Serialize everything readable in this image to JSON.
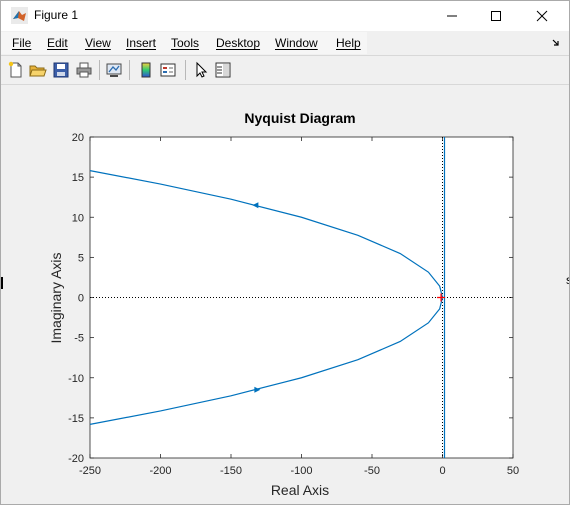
{
  "window": {
    "title": "Figure 1",
    "icon": "matlab-icon",
    "controls": [
      "minimize-icon",
      "maximize-icon",
      "close-icon"
    ]
  },
  "menu": [
    "File",
    "Edit",
    "View",
    "Insert",
    "Tools",
    "Desktop",
    "Window",
    "Help"
  ],
  "toolbar": [
    "new-figure-icon",
    "open-file-icon",
    "save-icon",
    "print-icon",
    "link-plot-icon",
    "insert-colorbar-icon",
    "insert-legend-icon",
    "edit-plot-icon",
    "property-inspector-icon"
  ],
  "colors": {
    "curve": "#0072bd",
    "critical_point": "#ff0000",
    "axes_text": "#262626"
  },
  "chart_data": {
    "type": "line",
    "title": "Nyquist Diagram",
    "xlabel": "Real Axis",
    "ylabel": "Imaginary Axis",
    "xlim": [
      -250,
      50
    ],
    "ylim": [
      -20,
      20
    ],
    "xticks": [
      -250,
      -200,
      -150,
      -100,
      -50,
      0,
      50
    ],
    "yticks": [
      20,
      15,
      10,
      5,
      0,
      -5,
      -10,
      -15,
      -20
    ],
    "grid": false,
    "series": [
      {
        "x": [
          -250,
          -200,
          -150,
          -100,
          -60,
          -30,
          -10,
          -2,
          0
        ],
        "y": [
          15.81,
          14.14,
          12.25,
          10.0,
          7.75,
          5.48,
          3.16,
          1.41,
          0
        ]
      },
      {
        "x": [
          0,
          -2,
          -10,
          -30,
          -60,
          -100,
          -150,
          -200,
          -250
        ],
        "y": [
          0,
          -1.41,
          -3.16,
          -5.48,
          -7.75,
          -10.0,
          -12.25,
          -14.14,
          -15.81
        ]
      }
    ],
    "arrows": [
      {
        "x": -132,
        "y": 11.5,
        "direction": "left"
      },
      {
        "x": -132,
        "y": -11.5,
        "direction": "right"
      }
    ],
    "critical_point": {
      "x": -1,
      "y": 0
    }
  }
}
